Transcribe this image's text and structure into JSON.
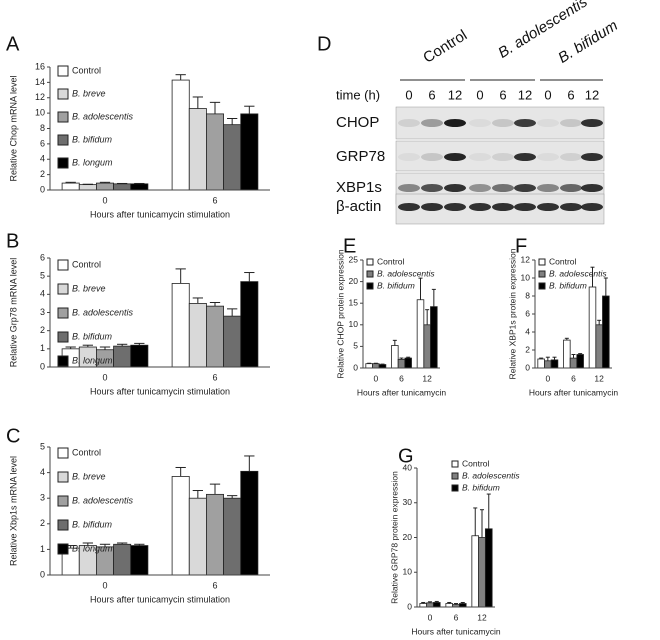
{
  "chart_data": [
    {
      "type": "bar",
      "panel": "A",
      "ylabel": "Relative Chop mRNA level",
      "xlabel": "Hours after tunicamycin stimulation",
      "categories": [
        "0",
        "6"
      ],
      "ylim": [
        0,
        16
      ],
      "yticks": [
        0,
        2,
        4,
        6,
        8,
        10,
        12,
        14,
        16
      ],
      "series": [
        {
          "name": "Control",
          "color": "#ffffff",
          "values": [
            0.9,
            14.3
          ],
          "errors": [
            0.1,
            0.7
          ]
        },
        {
          "name": "B. breve",
          "color": "#d9d9d9",
          "values": [
            0.7,
            10.6
          ],
          "errors": [
            0.05,
            1.5
          ]
        },
        {
          "name": "B. adolescentis",
          "color": "#a0a0a0",
          "values": [
            0.9,
            9.9
          ],
          "errors": [
            0.1,
            1.5
          ]
        },
        {
          "name": "B. bifidum",
          "color": "#6e6e6e",
          "values": [
            0.8,
            8.5
          ],
          "errors": [
            0.05,
            0.8
          ]
        },
        {
          "name": "B. longum",
          "color": "#000000",
          "values": [
            0.8,
            9.9
          ],
          "errors": [
            0.05,
            1.0
          ]
        }
      ]
    },
    {
      "type": "bar",
      "panel": "B",
      "ylabel": "Relative Grp78 mRNA level",
      "xlabel": "Hours after tunicamycin stimulation",
      "categories": [
        "0",
        "6"
      ],
      "ylim": [
        0,
        6
      ],
      "yticks": [
        0,
        1,
        2,
        3,
        4,
        5,
        6
      ],
      "series": [
        {
          "name": "Control",
          "color": "#ffffff",
          "values": [
            1.0,
            4.6
          ],
          "errors": [
            0.1,
            0.8
          ]
        },
        {
          "name": "B. breve",
          "color": "#d9d9d9",
          "values": [
            1.1,
            3.5
          ],
          "errors": [
            0.1,
            0.3
          ]
        },
        {
          "name": "B. adolescentis",
          "color": "#a0a0a0",
          "values": [
            0.95,
            3.35
          ],
          "errors": [
            0.15,
            0.2
          ]
        },
        {
          "name": "B. bifidum",
          "color": "#6e6e6e",
          "values": [
            1.15,
            2.8
          ],
          "errors": [
            0.1,
            0.4
          ]
        },
        {
          "name": "B. longum",
          "color": "#000000",
          "values": [
            1.2,
            4.7
          ],
          "errors": [
            0.1,
            0.5
          ]
        }
      ]
    },
    {
      "type": "bar",
      "panel": "C",
      "ylabel": "Relative Xbp1s mRNA level",
      "xlabel": "Hours after tunicamycin stimulation",
      "categories": [
        "0",
        "6"
      ],
      "ylim": [
        0,
        5
      ],
      "yticks": [
        0,
        1,
        2,
        3,
        4,
        5
      ],
      "series": [
        {
          "name": "Control",
          "color": "#ffffff",
          "values": [
            1.05,
            3.85
          ],
          "errors": [
            0.1,
            0.35
          ]
        },
        {
          "name": "B. breve",
          "color": "#d9d9d9",
          "values": [
            1.15,
            3.0
          ],
          "errors": [
            0.1,
            0.3
          ]
        },
        {
          "name": "B. adolescentis",
          "color": "#a0a0a0",
          "values": [
            1.1,
            3.15
          ],
          "errors": [
            0.1,
            0.4
          ]
        },
        {
          "name": "B. bifidum",
          "color": "#6e6e6e",
          "values": [
            1.2,
            3.0
          ],
          "errors": [
            0.05,
            0.1
          ]
        },
        {
          "name": "B. longum",
          "color": "#000000",
          "values": [
            1.15,
            4.05
          ],
          "errors": [
            0.05,
            0.6
          ]
        }
      ]
    },
    {
      "type": "bar",
      "panel": "E",
      "ylabel": "Relative CHOP protein expression",
      "xlabel": "Hours after tunicamycin",
      "categories": [
        "0",
        "6",
        "12"
      ],
      "ylim": [
        0,
        25
      ],
      "yticks": [
        0,
        5,
        10,
        15,
        20,
        25
      ],
      "series": [
        {
          "name": "Control",
          "color": "#ffffff",
          "values": [
            1.0,
            5.2,
            15.8
          ],
          "errors": [
            0.1,
            1.2,
            5.0
          ]
        },
        {
          "name": "B. adolescentis",
          "color": "#808080",
          "values": [
            1.0,
            2.0,
            10.0
          ],
          "errors": [
            0.1,
            0.3,
            3.5
          ]
        },
        {
          "name": "B. bifidum",
          "color": "#000000",
          "values": [
            0.8,
            2.3,
            14.2
          ],
          "errors": [
            0.1,
            0.2,
            4.0
          ]
        }
      ]
    },
    {
      "type": "bar",
      "panel": "F",
      "ylabel": "Relative XBP1s protein expression",
      "xlabel": "Hours after tunicamycin",
      "categories": [
        "0",
        "6",
        "12"
      ],
      "ylim": [
        0,
        12
      ],
      "yticks": [
        0,
        2,
        4,
        6,
        8,
        10,
        12
      ],
      "series": [
        {
          "name": "Control",
          "color": "#ffffff",
          "values": [
            1.0,
            3.1,
            9.0
          ],
          "errors": [
            0.1,
            0.2,
            2.2
          ]
        },
        {
          "name": "B. adolescentis",
          "color": "#808080",
          "values": [
            0.8,
            1.1,
            4.8
          ],
          "errors": [
            0.4,
            0.4,
            0.5
          ]
        },
        {
          "name": "B. bifidum",
          "color": "#000000",
          "values": [
            0.9,
            1.5,
            8.0
          ],
          "errors": [
            0.3,
            0.1,
            2.0
          ]
        }
      ]
    },
    {
      "type": "bar",
      "panel": "G",
      "ylabel": "Relative GRP78 protein expression",
      "xlabel": "Hours after tunicamycin",
      "categories": [
        "0",
        "6",
        "12"
      ],
      "ylim": [
        0,
        40
      ],
      "yticks": [
        0,
        10,
        20,
        30,
        40
      ],
      "series": [
        {
          "name": "Control",
          "color": "#ffffff",
          "values": [
            1.0,
            1.0,
            20.5
          ],
          "errors": [
            0.3,
            0.3,
            8.0
          ]
        },
        {
          "name": "B. adolescentis",
          "color": "#808080",
          "values": [
            1.2,
            0.7,
            20.0
          ],
          "errors": [
            0.3,
            0.3,
            8.0
          ]
        },
        {
          "name": "B. bifidum",
          "color": "#000000",
          "values": [
            1.3,
            1.0,
            22.5
          ],
          "errors": [
            0.3,
            0.3,
            10.0
          ]
        }
      ]
    }
  ],
  "blot": {
    "panel": "D",
    "groups": [
      "Control",
      "B. adolescentis",
      "B. bifidum"
    ],
    "time_label": "time (h)",
    "times": [
      "0",
      "6",
      "12",
      "0",
      "6",
      "12",
      "0",
      "6",
      "12"
    ],
    "rows": [
      "CHOP",
      "GRP78",
      "XBP1s",
      "β-actin"
    ]
  }
}
